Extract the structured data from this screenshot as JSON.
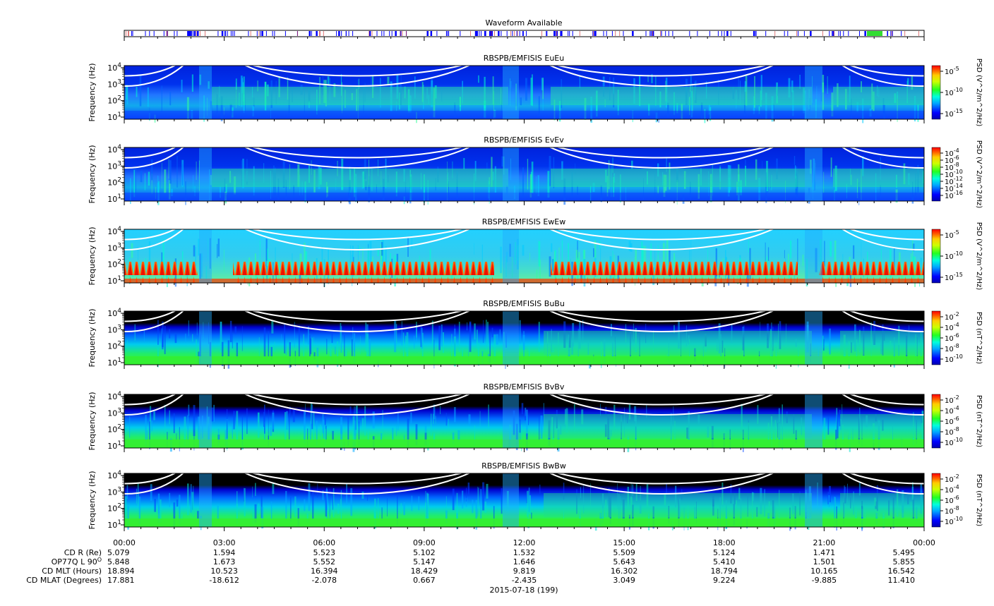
{
  "waveform": {
    "title": "Waveform Available",
    "colors": {
      "available": "#0000ff",
      "green": "#33dd33",
      "border": "#000000"
    }
  },
  "chart_data": [
    {
      "type": "heatmap",
      "title": "RBSPB/EMFISIS  EuEu",
      "ylabel": "Frequency (Hz)",
      "yscale": "log",
      "yticks": [
        "10^4",
        "10^3",
        "10^2",
        "10^1"
      ],
      "colorbar": {
        "label": "PSD (V^2/m^2/Hz)",
        "ticks": [
          "10^-5",
          "10^-10",
          "10^-15"
        ],
        "scale": "log"
      },
      "background": "blue"
    },
    {
      "type": "heatmap",
      "title": "RBSPB/EMFISIS  EvEv",
      "ylabel": "Frequency (Hz)",
      "yscale": "log",
      "yticks": [
        "10^4",
        "10^3",
        "10^2",
        "10^1"
      ],
      "colorbar": {
        "label": "PSD (V^2/m^2/Hz)",
        "ticks": [
          "10^-4",
          "10^-6",
          "10^-8",
          "10^-10",
          "10^-12",
          "10^-14",
          "10^-16"
        ],
        "scale": "log"
      },
      "background": "blue"
    },
    {
      "type": "heatmap",
      "title": "RBSPB/EMFISIS  EwEw",
      "ylabel": "Frequency (Hz)",
      "yscale": "log",
      "yticks": [
        "10^4",
        "10^3",
        "10^2",
        "10^1"
      ],
      "colorbar": {
        "label": "PSD (V^2/m^2/Hz)",
        "ticks": [
          "10^-5",
          "10^-10",
          "10^-15"
        ],
        "scale": "log"
      },
      "background": "cyan"
    },
    {
      "type": "heatmap",
      "title": "RBSPB/EMFISIS  BuBu",
      "ylabel": "Frequency (Hz)",
      "yscale": "log",
      "yticks": [
        "10^4",
        "10^3",
        "10^2",
        "10^1"
      ],
      "colorbar": {
        "label": "PSD (nT^2/Hz)",
        "ticks": [
          "10^-2",
          "10^-4",
          "10^-6",
          "10^-8",
          "10^-10"
        ],
        "scale": "log"
      },
      "background": "black"
    },
    {
      "type": "heatmap",
      "title": "RBSPB/EMFISIS  BvBv",
      "ylabel": "Frequency (Hz)",
      "yscale": "log",
      "yticks": [
        "10^4",
        "10^3",
        "10^2",
        "10^1"
      ],
      "colorbar": {
        "label": "PSD (nT^2/Hz)",
        "ticks": [
          "10^-2",
          "10^-4",
          "10^-6",
          "10^-8",
          "10^-10"
        ],
        "scale": "log"
      },
      "background": "black"
    },
    {
      "type": "heatmap",
      "title": "RBSPB/EMFISIS  BwBw",
      "ylabel": "Frequency (Hz)",
      "yscale": "log",
      "yticks": [
        "10^4",
        "10^3",
        "10^2",
        "10^1"
      ],
      "colorbar": {
        "label": "PSD (nT^2/Hz)",
        "ticks": [
          "10^-2",
          "10^-4",
          "10^-6",
          "10^-8",
          "10^-10"
        ],
        "scale": "log"
      },
      "background": "black"
    }
  ],
  "x_axis": {
    "ticks": [
      "00:00",
      "03:00",
      "06:00",
      "09:00",
      "12:00",
      "15:00",
      "18:00",
      "21:00",
      "00:00"
    ],
    "date_label": "2015-07-18 (199)"
  },
  "ephemeris": {
    "rows": [
      {
        "label": "CD R (Re)",
        "values": [
          "5.079",
          "1.594",
          "5.523",
          "5.102",
          "1.532",
          "5.509",
          "5.124",
          "1.471",
          "5.495"
        ]
      },
      {
        "label": "OP77Q L 90",
        "label_sup": "O",
        "values": [
          "5.848",
          "1.673",
          "5.552",
          "5.147",
          "1.646",
          "5.643",
          "5.410",
          "1.501",
          "5.855"
        ]
      },
      {
        "label": "CD MLT (Hours)",
        "values": [
          "18.894",
          "10.523",
          "16.394",
          "18.429",
          "9.819",
          "16.302",
          "18.794",
          "10.165",
          "16.542"
        ]
      },
      {
        "label": "CD MLAT (Degrees)",
        "values": [
          "17.881",
          "-18.612",
          "-2.078",
          "0.667",
          "-2.435",
          "3.049",
          "9.224",
          "-9.885",
          "11.410"
        ]
      }
    ]
  }
}
